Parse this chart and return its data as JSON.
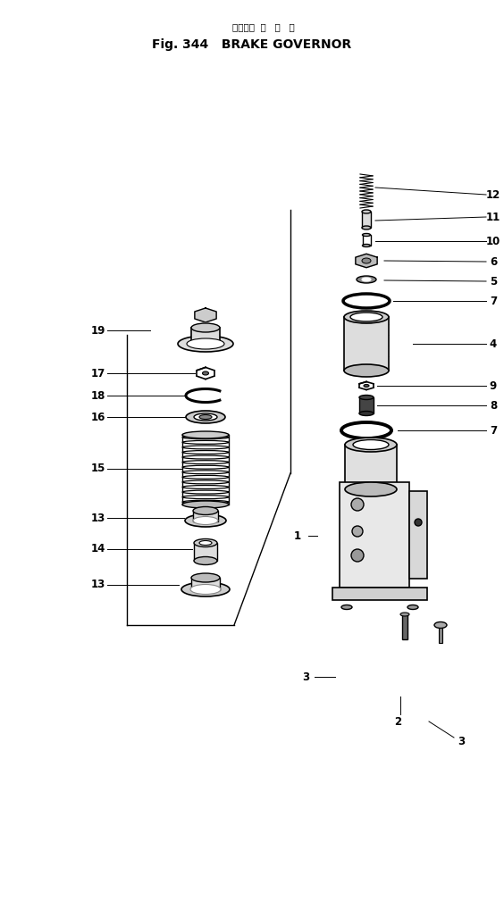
{
  "title_japanese": "ブレーキ  ガ   バ   ナ",
  "title_english": "Fig. 344   BRAKE GOVERNOR",
  "bg_color": "#ffffff",
  "line_color": "#000000",
  "fig_width": 5.64,
  "fig_height": 10.18
}
